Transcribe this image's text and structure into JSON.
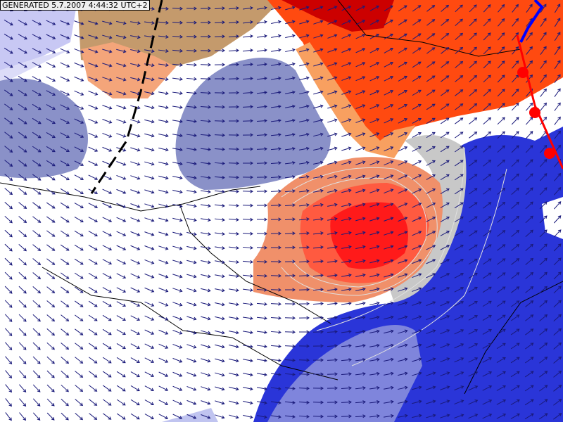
{
  "header": {
    "timestamp": "GENERATED 5.7.2007 4:44:32 UTC+2"
  }
}
